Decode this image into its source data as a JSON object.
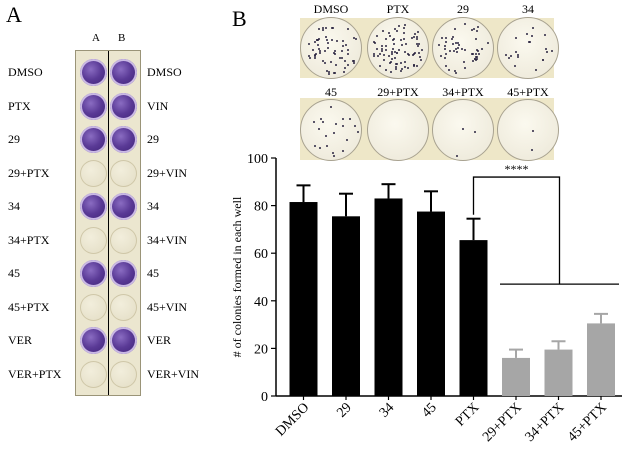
{
  "panel_a": {
    "letter": "A",
    "columns": [
      "A",
      "B"
    ],
    "left_labels": [
      "DMSO",
      "PTX",
      "29",
      "29+PTX",
      "34",
      "34+PTX",
      "45",
      "45+PTX",
      "VER",
      "VER+PTX"
    ],
    "right_labels": [
      "DMSO",
      "VIN",
      "29",
      "29+VIN",
      "34",
      "34+VIN",
      "45",
      "45+VIN",
      "VER",
      "VER+VIN"
    ],
    "stained_rows": [
      true,
      true,
      true,
      false,
      true,
      false,
      true,
      false,
      true,
      false
    ]
  },
  "panel_b": {
    "letter": "B",
    "dish_labels_top": [
      "DMSO",
      "PTX",
      "29",
      "34"
    ],
    "dish_labels_bottom": [
      "45",
      "29+PTX",
      "34+PTX",
      "45+PTX"
    ],
    "dish_density_top": [
      60,
      80,
      50,
      20
    ],
    "dish_density_bottom": [
      20,
      0,
      3,
      2
    ]
  },
  "colors": {
    "bar_black": "#000000",
    "bar_gray": "#a6a6a6",
    "plate": "#ebe6cf"
  },
  "chart_data": {
    "type": "bar",
    "ylabel": "# of colonies formed in each well",
    "ylim": [
      0,
      100
    ],
    "yticks": [
      0,
      20,
      40,
      60,
      80,
      100
    ],
    "categories": [
      "DMSO",
      "29",
      "34",
      "45",
      "PTX",
      "29+PTX",
      "34+PTX",
      "45+PTX"
    ],
    "values": [
      81.5,
      75.5,
      83,
      77.5,
      65.5,
      16,
      19.5,
      30.5
    ],
    "errors": [
      7,
      9.5,
      6,
      8.5,
      9,
      3.5,
      3.5,
      4
    ],
    "bar_colors": [
      "#000000",
      "#000000",
      "#000000",
      "#000000",
      "#000000",
      "#a6a6a6",
      "#a6a6a6",
      "#a6a6a6"
    ],
    "annotation": "****",
    "bracket": {
      "from_bar": 4,
      "to_group": [
        5,
        6,
        7
      ],
      "upper_level": 92,
      "lower_level": 47
    }
  }
}
